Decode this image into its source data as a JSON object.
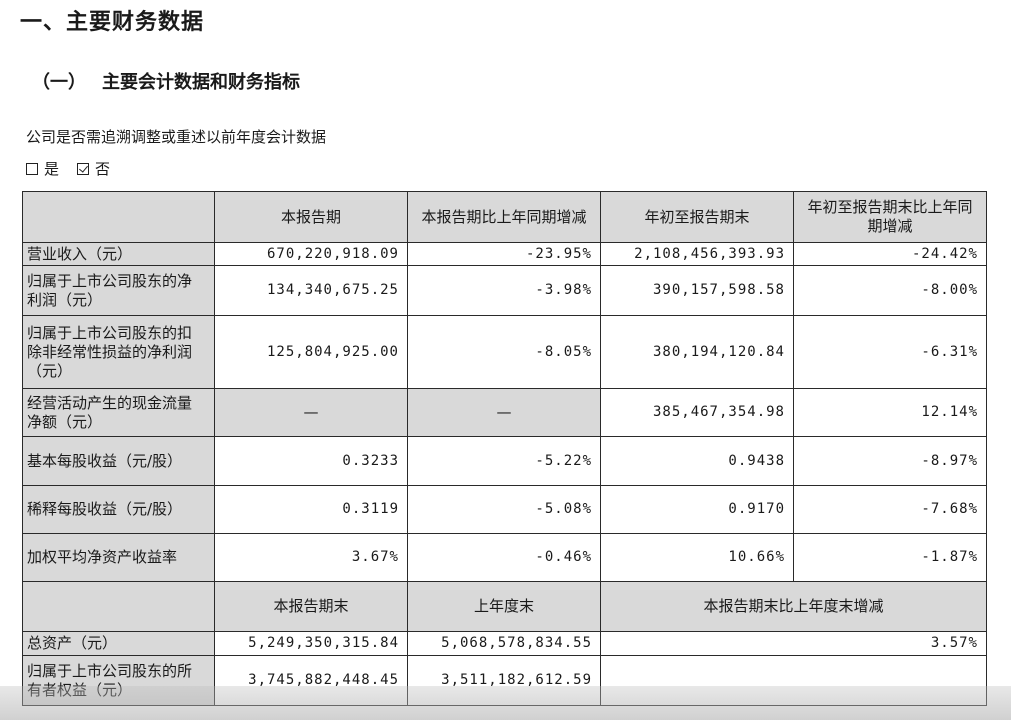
{
  "section_title": "一、主要财务数据",
  "subsection": {
    "num": "（一）",
    "title": "主要会计数据和财务指标"
  },
  "question": "公司是否需追溯调整或重述以前年度会计数据",
  "choices": [
    {
      "label": "是",
      "checked": false
    },
    {
      "label": "否",
      "checked": true
    }
  ],
  "table1": {
    "headers": [
      "",
      "本报告期",
      "本报告期比上年同期增减",
      "年初至报告期末",
      "年初至报告期末比上年同期增减"
    ],
    "rows": [
      {
        "label": "营业收入（元）",
        "cells": [
          "670,220,918.09",
          "-23.95%",
          "2,108,456,393.93",
          "-24.42%"
        ]
      },
      {
        "label": "归属于上市公司股东的净利润（元）",
        "cells": [
          "134,340,675.25",
          "-3.98%",
          "390,157,598.58",
          "-8.00%"
        ]
      },
      {
        "label": "归属于上市公司股东的扣除非经常性损益的净利润（元）",
        "cells": [
          "125,804,925.00",
          "-8.05%",
          "380,194,120.84",
          "-6.31%"
        ]
      },
      {
        "label": "经营活动产生的现金流量净额（元）",
        "cells": [
          "—",
          "—",
          "385,467,354.98",
          "12.14%"
        ]
      },
      {
        "label": "基本每股收益（元/股）",
        "cells": [
          "0.3233",
          "-5.22%",
          "0.9438",
          "-8.97%"
        ]
      },
      {
        "label": "稀释每股收益（元/股）",
        "cells": [
          "0.3119",
          "-5.08%",
          "0.9170",
          "-7.68%"
        ]
      },
      {
        "label": "加权平均净资产收益率",
        "cells": [
          "3.67%",
          "-0.46%",
          "10.66%",
          "-1.87%"
        ]
      }
    ]
  },
  "table2": {
    "headers": [
      "",
      "本报告期末",
      "上年度末",
      "本报告期末比上年度末增减"
    ],
    "rows": [
      {
        "label": "总资产（元）",
        "cells": [
          "5,249,350,315.84",
          "5,068,578,834.55",
          "3.57%"
        ]
      },
      {
        "label": "归属于上市公司股东的所有者权益（元）",
        "cells": [
          "3,745,882,448.45",
          "3,511,182,612.59",
          ""
        ]
      }
    ]
  }
}
